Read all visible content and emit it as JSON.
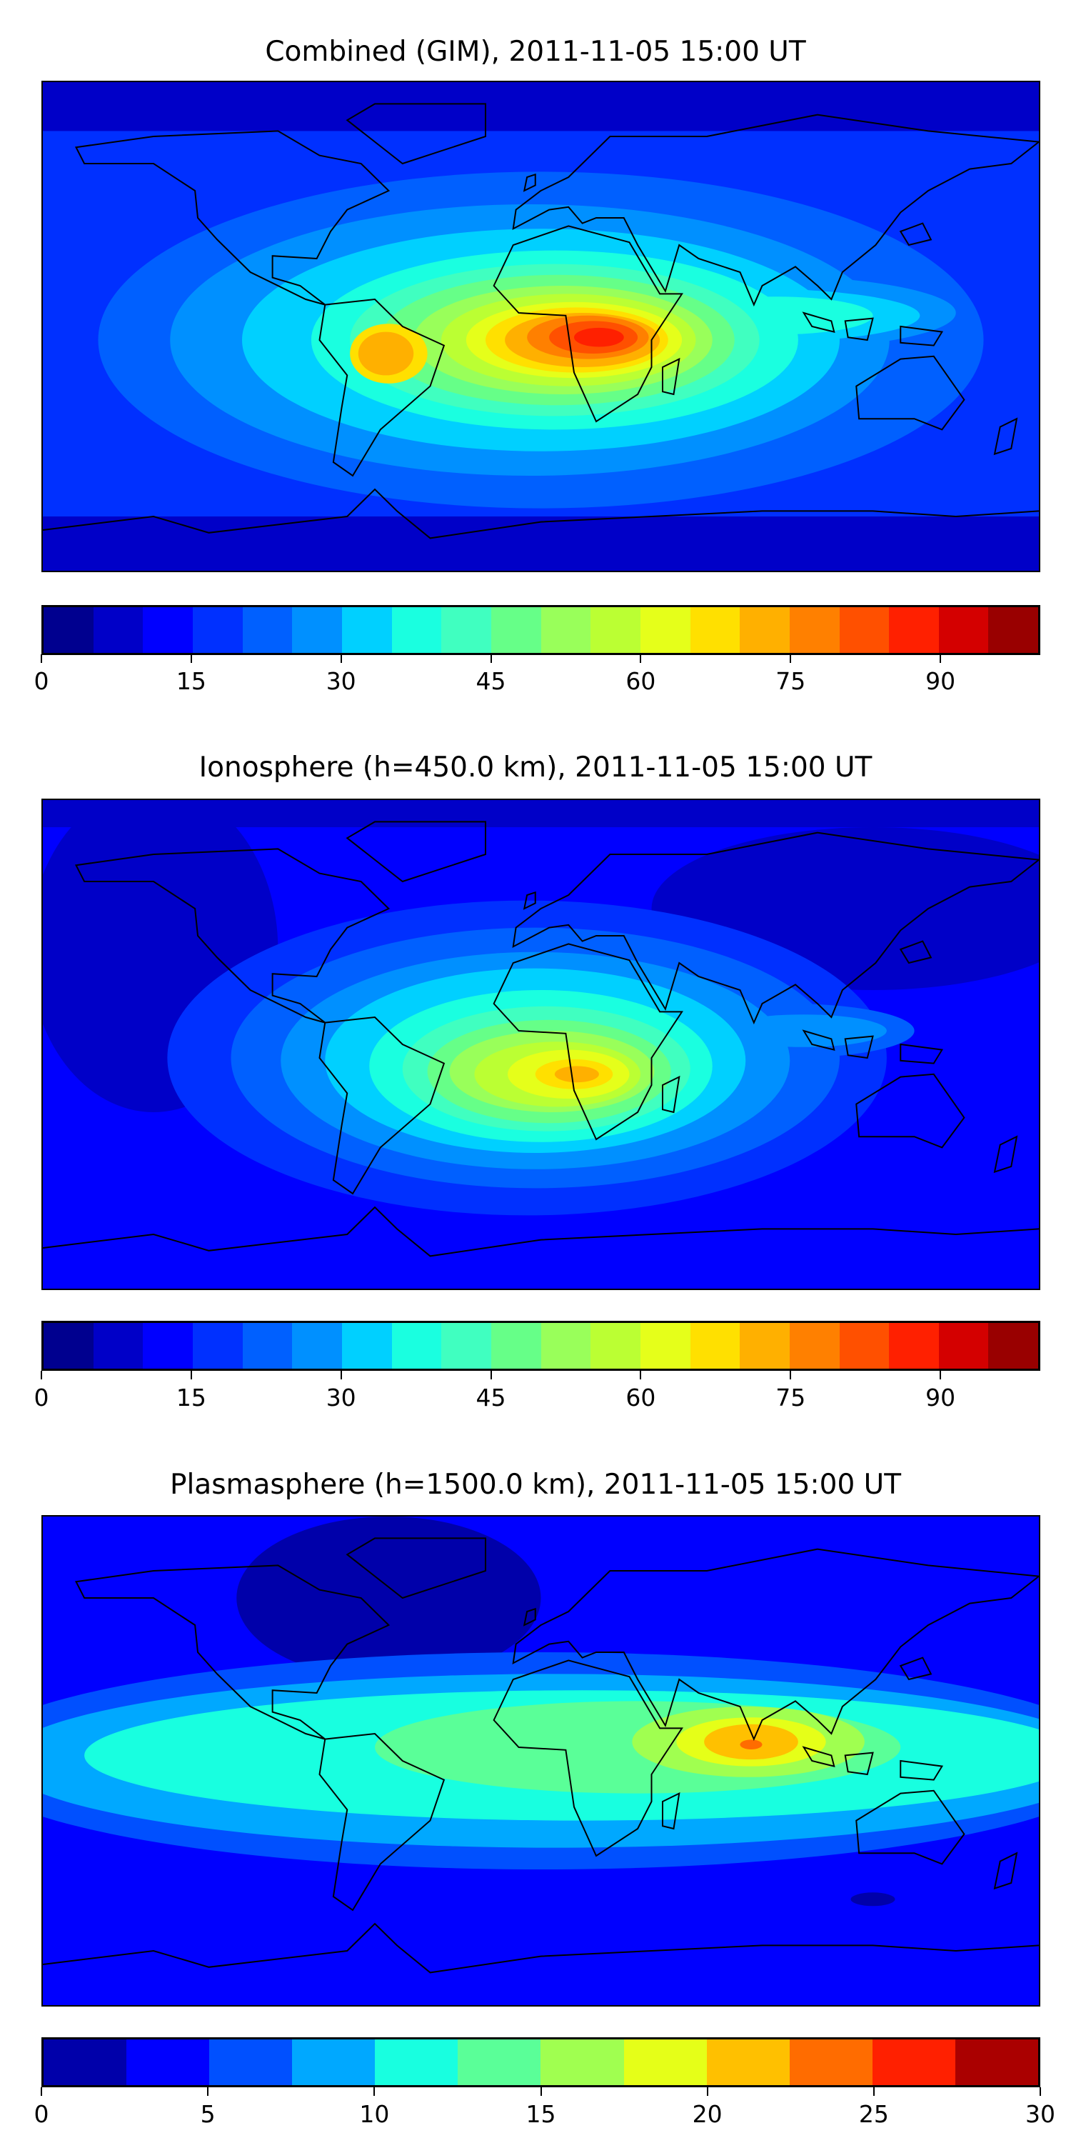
{
  "chart_data": [
    {
      "type": "heatmap",
      "subtype": "filled-contour world map",
      "title": "Combined (GIM), 2011-11-05 15:00 UT",
      "colorbar": {
        "range": [
          0,
          100
        ],
        "level_step": 5,
        "ticks": [
          0,
          15,
          30,
          45,
          60,
          75,
          90
        ],
        "tick_labels": [
          "0",
          "15",
          "30",
          "45",
          "60",
          "75",
          "90"
        ],
        "colors": [
          "#00008f",
          "#0000c8",
          "#0000ff",
          "#0030ff",
          "#0060ff",
          "#0090ff",
          "#00d0ff",
          "#1affe0",
          "#40ffc0",
          "#66ff88",
          "#99ff5a",
          "#bbff33",
          "#e5ff1a",
          "#ffe000",
          "#ffb000",
          "#ff8000",
          "#ff5000",
          "#ff2000",
          "#d40000",
          "#990000"
        ]
      },
      "peak": {
        "region": "equatorial Africa / South Atlantic",
        "approx_value": 90
      }
    },
    {
      "type": "heatmap",
      "subtype": "filled-contour world map",
      "title": "Ionosphere  (h=450.0 km), 2011-11-05 15:00 UT",
      "colorbar": {
        "range": [
          0,
          100
        ],
        "level_step": 5,
        "ticks": [
          0,
          15,
          30,
          45,
          60,
          75,
          90
        ],
        "tick_labels": [
          "0",
          "15",
          "30",
          "45",
          "60",
          "75",
          "90"
        ],
        "colors": [
          "#00008f",
          "#0000c8",
          "#0000ff",
          "#0030ff",
          "#0060ff",
          "#0090ff",
          "#00d0ff",
          "#1affe0",
          "#40ffc0",
          "#66ff88",
          "#99ff5a",
          "#bbff33",
          "#e5ff1a",
          "#ffe000",
          "#ffb000",
          "#ff8000",
          "#ff5000",
          "#ff2000",
          "#d40000",
          "#990000"
        ]
      },
      "peak": {
        "region": "southern Africa / South Atlantic",
        "approx_value": 70
      }
    },
    {
      "type": "heatmap",
      "subtype": "filled-contour world map",
      "title": "Plasmasphere (h=1500.0 km), 2011-11-05 15:00 UT",
      "colorbar": {
        "range": [
          0,
          30
        ],
        "level_step": 2.5,
        "ticks": [
          0,
          5,
          10,
          15,
          20,
          25,
          30
        ],
        "tick_labels": [
          "0",
          "5",
          "10",
          "15",
          "20",
          "25",
          "30"
        ],
        "colors": [
          "#0000aa",
          "#0000ff",
          "#0050ff",
          "#00a8ff",
          "#18ffe0",
          "#5aff98",
          "#a0ff50",
          "#e5ff18",
          "#ffc000",
          "#ff6c00",
          "#ff2000",
          "#aa0000"
        ]
      },
      "peak": {
        "region": "Indian Ocean / India",
        "approx_value": 23
      }
    }
  ]
}
